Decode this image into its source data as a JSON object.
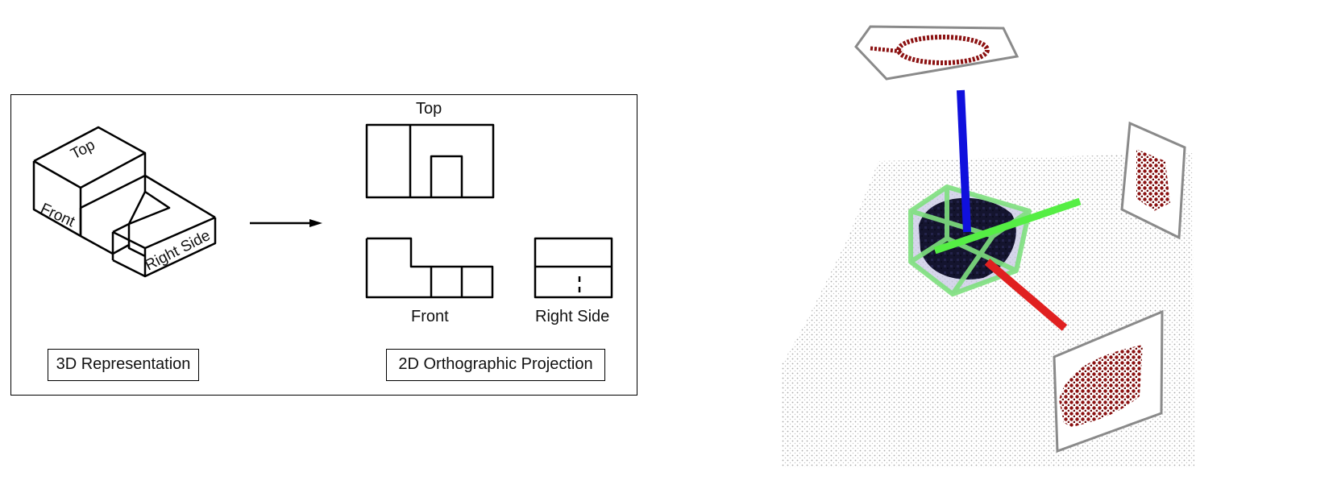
{
  "left_figure": {
    "iso_labels": {
      "top": "Top",
      "front": "Front",
      "right_side": "Right Side"
    },
    "view_labels": {
      "top": "Top",
      "front": "Front",
      "right_side": "Right Side"
    },
    "caption_3d": "3D Representation",
    "caption_2d": "2D Orthographic Projection"
  },
  "right_figure": {
    "colors": {
      "x_axis": "#e02020",
      "y_axis": "#55ee44",
      "z_axis": "#1010dd",
      "bounding_box": "#7fe07f",
      "object_points": "#14142e",
      "projection_points": "#8b1010",
      "ground_points": "#a9a9a9",
      "plane_border": "#8a8a8a"
    }
  }
}
